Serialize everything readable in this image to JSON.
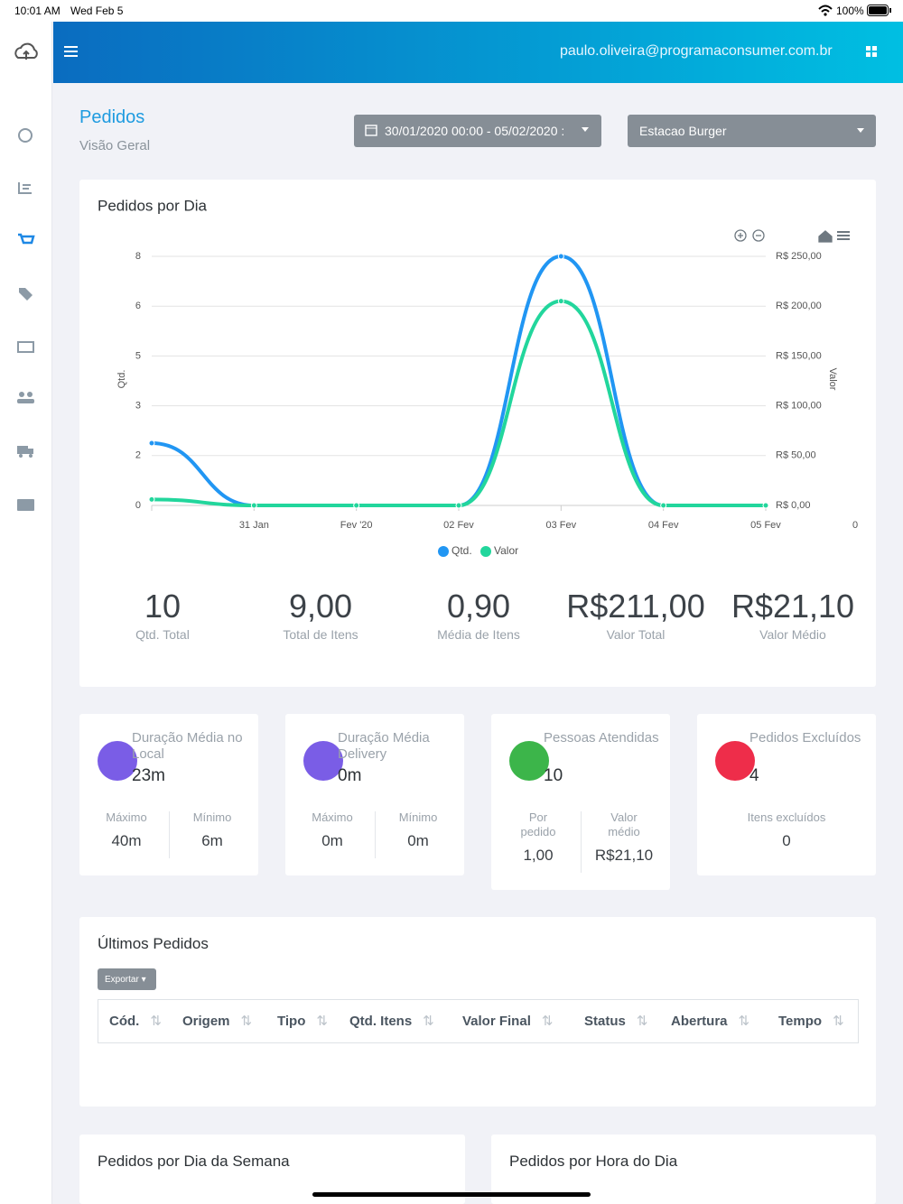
{
  "status_bar": {
    "time": "10:01 AM",
    "date": "Wed Feb 5",
    "battery": "100%"
  },
  "header": {
    "email": "paulo.oliveira@programaconsumer.com.br"
  },
  "page": {
    "title": "Pedidos",
    "subtitle": "Visão Geral",
    "date_range": "30/01/2020 00:00 - 05/02/2020 :",
    "store": "Estacao Burger"
  },
  "chart_data": {
    "type": "line",
    "title": "Pedidos por Dia",
    "categories": [
      null,
      "31 Jan",
      "Fev '20",
      "02 Fev",
      "03 Fev",
      "04 Fev",
      "05 Fev"
    ],
    "x_end_label": "0",
    "y_label": "Qtd.",
    "y2_label": "Valor",
    "ylim": [
      0,
      8
    ],
    "yticks": [
      0,
      {
        "value": 1.6,
        "label": "2"
      },
      {
        "value": 3.2,
        "label": "3"
      },
      {
        "value": 4.8,
        "label": "5"
      },
      {
        "value": 6.4,
        "label": "6"
      },
      8
    ],
    "y2lim": [
      0,
      250
    ],
    "y2ticks": [
      {
        "value": 0,
        "label": "R$ 0,00"
      },
      {
        "value": 50,
        "label": "R$ 50,00"
      },
      {
        "value": 100,
        "label": "R$ 100,00"
      },
      {
        "value": 150,
        "label": "R$ 150,00"
      },
      {
        "value": 200,
        "label": "R$ 200,00"
      },
      {
        "value": 250,
        "label": "R$ 250,00"
      }
    ],
    "grid": true,
    "legend": "bottom",
    "series": [
      {
        "name": "Qtd.",
        "color": "#2196f3",
        "values": [
          2,
          0,
          0,
          0,
          8,
          0,
          0
        ]
      },
      {
        "name": "Valor",
        "color": "#22d69c",
        "axis": "y2",
        "values": [
          6,
          0,
          0,
          0,
          205,
          0,
          0
        ]
      }
    ]
  },
  "stats": [
    {
      "value": "10",
      "label": "Qtd. Total"
    },
    {
      "value": "9,00",
      "label": "Total de Itens"
    },
    {
      "value": "0,90",
      "label": "Média de Itens"
    },
    {
      "value": "R$211,00",
      "label": "Valor Total"
    },
    {
      "value": "R$21,10",
      "label": "Valor Médio"
    }
  ],
  "cards": [
    {
      "title": "Duração Média no Local",
      "value": "23m",
      "metrics": [
        {
          "label": "Máximo",
          "value": "40m"
        },
        {
          "label": "Mínimo",
          "value": "6m"
        }
      ]
    },
    {
      "title": "Duração Média Delivery",
      "value": "0m",
      "metrics": [
        {
          "label": "Máximo",
          "value": "0m"
        },
        {
          "label": "Mínimo",
          "value": "0m"
        }
      ]
    },
    {
      "title": "Pessoas Atendidas",
      "value": "10",
      "metrics": [
        {
          "label": "Por pedido",
          "value": "1,00"
        },
        {
          "label": "Valor médio",
          "value": "R$21,10"
        }
      ]
    },
    {
      "title": "Pedidos Excluídos",
      "value": "4",
      "metrics": [
        {
          "label": "Itens excluídos",
          "value": "0"
        }
      ]
    }
  ],
  "table": {
    "title": "Últimos Pedidos",
    "export": "Exportar",
    "columns": [
      "Cód.",
      "Origem",
      "Tipo",
      "Qtd. Itens",
      "Valor Final",
      "Status",
      "Abertura",
      "Tempo"
    ]
  },
  "bottom_cards": [
    "Pedidos por Dia da Semana",
    "Pedidos por Hora do Dia"
  ]
}
